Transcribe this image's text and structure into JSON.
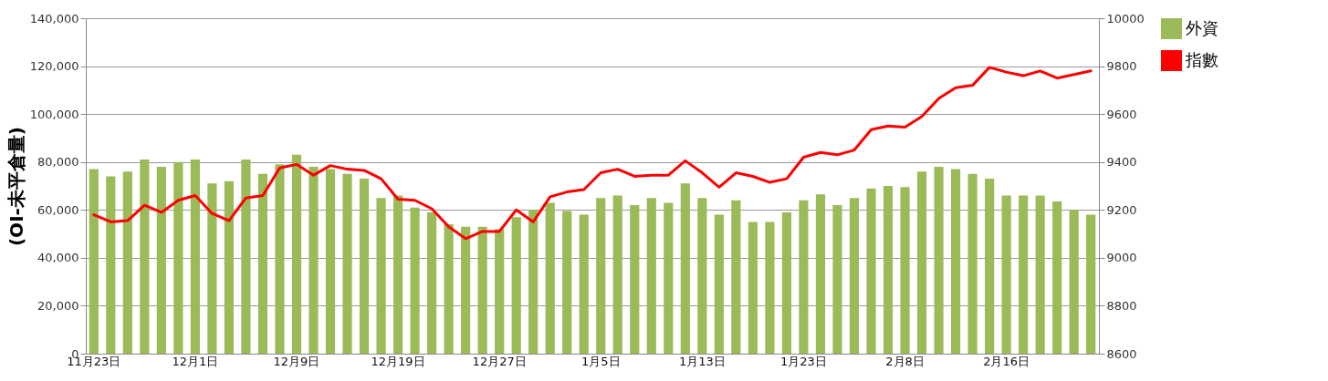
{
  "chart_data": {
    "type": "bar",
    "ylabel": "(OI-未平倉量)",
    "categories": [
      "11月23日",
      null,
      null,
      null,
      null,
      null,
      "12月1日",
      null,
      null,
      null,
      null,
      null,
      "12月9日",
      null,
      null,
      null,
      null,
      null,
      "12月19日",
      null,
      null,
      null,
      null,
      null,
      "12月27日",
      null,
      null,
      null,
      null,
      null,
      "1月5日",
      null,
      null,
      null,
      null,
      null,
      "1月13日",
      null,
      null,
      null,
      null,
      null,
      "1月23日",
      null,
      null,
      null,
      null,
      null,
      "2月8日",
      null,
      null,
      null,
      null,
      null,
      "2月16日",
      null,
      null,
      null,
      null,
      null
    ],
    "series": [
      {
        "name": "外資",
        "color": "#9bbb59",
        "values": [
          77000,
          74000,
          76000,
          81000,
          78000,
          80000,
          81000,
          71000,
          72000,
          81000,
          75000,
          79000,
          83000,
          78000,
          77000,
          75000,
          73000,
          65000,
          66000,
          61000,
          59000,
          54000,
          53000,
          53000,
          52000,
          57000,
          60000,
          63000,
          59500,
          58000,
          65000,
          66000,
          62000,
          65000,
          63000,
          71000,
          65000,
          58000,
          64000,
          55000,
          55000,
          59000,
          64000,
          66500,
          62000,
          65000,
          69000,
          70000,
          69500,
          76000,
          78000,
          77000,
          75000,
          73000,
          66000,
          66000,
          66000,
          63500,
          60000,
          58000
        ]
      },
      {
        "name": "指數",
        "type": "line",
        "axis": "y2",
        "color": "#ff0000",
        "values": [
          9180,
          9150,
          9155,
          9220,
          9190,
          9240,
          9260,
          9185,
          9155,
          9250,
          9260,
          9375,
          9390,
          9345,
          9385,
          9370,
          9365,
          9330,
          9245,
          9240,
          9205,
          9130,
          9080,
          9110,
          9110,
          9200,
          9150,
          9255,
          9275,
          9285,
          9355,
          9370,
          9340,
          9345,
          9345,
          9405,
          9355,
          9295,
          9355,
          9340,
          9315,
          9330,
          9420,
          9440,
          9430,
          9450,
          9535,
          9550,
          9545,
          9590,
          9665,
          9710,
          9720,
          9795,
          9775,
          9760,
          9780,
          9750,
          9765,
          9780
        ]
      }
    ],
    "ylim": [
      0,
      140000
    ],
    "yticks": [
      0,
      {
        "value": 20000,
        "label": "20,000"
      },
      {
        "value": 40000,
        "label": "40,000"
      },
      {
        "value": 60000,
        "label": "60,000"
      },
      {
        "value": 80000,
        "label": "80,000"
      },
      {
        "value": 100000,
        "label": "100,000"
      },
      {
        "value": 120000,
        "label": "120,000"
      },
      {
        "value": 140000,
        "label": "140,000"
      }
    ],
    "y2lim": [
      8600,
      10000
    ],
    "y2ticks": [
      8600,
      8800,
      9000,
      9200,
      9400,
      9600,
      9800,
      10000
    ],
    "grid": "y",
    "legend": "right"
  }
}
